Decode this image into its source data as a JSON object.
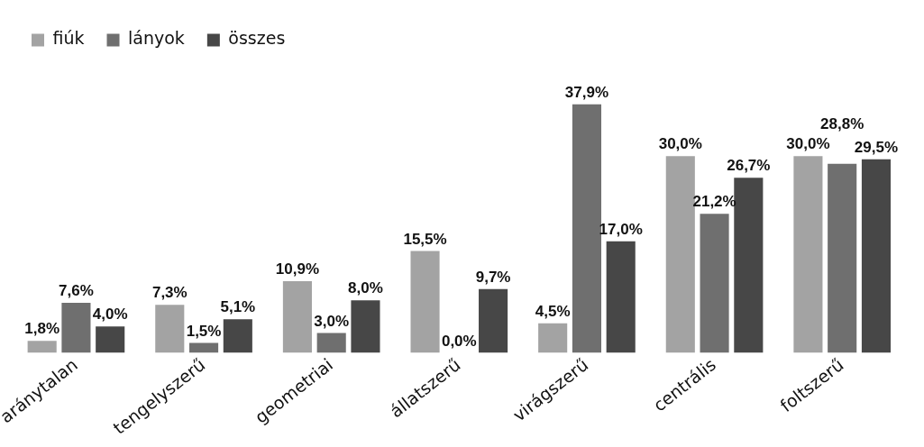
{
  "chart_data": {
    "type": "bar",
    "categories": [
      "aránytalan",
      "tengelyszerű",
      "geometriai",
      "állatszerű",
      "virágszerű",
      "centrális",
      "foltszerű"
    ],
    "series": [
      {
        "name": "fiúk",
        "color": "#a3a3a3",
        "values": [
          1.8,
          7.3,
          10.9,
          15.5,
          4.5,
          30.0,
          30.0
        ],
        "value_labels": [
          "1,8%",
          "7,3%",
          "10,9%",
          "15,5%",
          "4,5%",
          "30,0%",
          "30,0%"
        ]
      },
      {
        "name": "lányok",
        "color": "#6f6f6f",
        "values": [
          7.6,
          1.5,
          3.0,
          0.0,
          37.9,
          21.2,
          28.8
        ],
        "value_labels": [
          "7,6%",
          "1,5%",
          "3,0%",
          "0,0%",
          "37,9%",
          "21,2%",
          "28,8%"
        ]
      },
      {
        "name": "összes",
        "color": "#474747",
        "values": [
          4.0,
          5.1,
          8.0,
          9.7,
          17.0,
          26.7,
          29.5
        ],
        "value_labels": [
          "4,0%",
          "5,1%",
          "8,0%",
          "9,7%",
          "17,0%",
          "26,7%",
          "29,5%"
        ]
      }
    ],
    "legend": "top left",
    "grid": false
  }
}
